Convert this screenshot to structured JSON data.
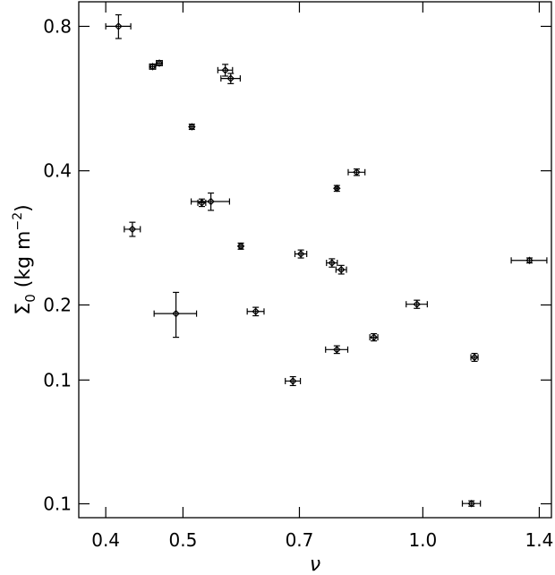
{
  "chart_data": {
    "type": "scatter",
    "title": "",
    "xlabel": "ν",
    "ylabel": "Σ₀ (kg m⁻²)",
    "ylabel_parts": {
      "symbol": "Σ",
      "subscript": "0",
      "units_open": " (kg m",
      "units_exp": "−2",
      "units_close": ")"
    },
    "x_scale": "log",
    "y_scale": "log",
    "xlim": [
      0.37,
      1.45
    ],
    "ylim": [
      0.0715,
      0.88
    ],
    "x_ticks": [
      0.4,
      0.5,
      0.7,
      1.0,
      1.4
    ],
    "x_tick_labels": [
      "0.4",
      "0.5",
      "0.7",
      "1.0",
      "1.4"
    ],
    "y_ticks": [
      0.0765,
      0.1397,
      0.2013,
      0.3867,
      0.7808
    ],
    "y_tick_labels": [
      "0.1",
      "0.1",
      "0.2",
      "0.4",
      "0.8"
    ],
    "marker": "diamond",
    "grid": false,
    "points": [
      {
        "x": 0.415,
        "y": 0.781,
        "xerr": 0.015,
        "yerr": 0.045
      },
      {
        "x": 0.458,
        "y": 0.642,
        "xerr": 0.004,
        "yerr": 0.008
      },
      {
        "x": 0.467,
        "y": 0.653,
        "xerr": 0.004,
        "yerr": 0.008
      },
      {
        "x": 0.565,
        "y": 0.631,
        "xerr": 0.012,
        "yerr": 0.018
      },
      {
        "x": 0.574,
        "y": 0.606,
        "xerr": 0.016,
        "yerr": 0.015
      },
      {
        "x": 0.513,
        "y": 0.479,
        "xerr": 0.003,
        "yerr": 0.006
      },
      {
        "x": 0.826,
        "y": 0.384,
        "xerr": 0.02,
        "yerr": 0.006
      },
      {
        "x": 0.78,
        "y": 0.355,
        "xerr": 0.003,
        "yerr": 0.005
      },
      {
        "x": 0.528,
        "y": 0.331,
        "xerr": 0.006,
        "yerr": 0.006
      },
      {
        "x": 0.542,
        "y": 0.333,
        "xerr": 0.03,
        "yerr": 0.014
      },
      {
        "x": 0.432,
        "y": 0.291,
        "xerr": 0.01,
        "yerr": 0.01
      },
      {
        "x": 0.591,
        "y": 0.268,
        "xerr": 0.003,
        "yerr": 0.004
      },
      {
        "x": 0.703,
        "y": 0.258,
        "xerr": 0.012,
        "yerr": 0.005
      },
      {
        "x": 0.769,
        "y": 0.247,
        "xerr": 0.012,
        "yerr": 0.005
      },
      {
        "x": 0.79,
        "y": 0.239,
        "xerr": 0.012,
        "yerr": 0.005
      },
      {
        "x": 1.361,
        "y": 0.25,
        "xerr": 0.07,
        "yerr": 0.003
      },
      {
        "x": 0.983,
        "y": 0.202,
        "xerr": 0.03,
        "yerr": 0.004
      },
      {
        "x": 0.617,
        "y": 0.195,
        "xerr": 0.015,
        "yerr": 0.004
      },
      {
        "x": 0.49,
        "y": 0.193,
        "xerr": 0.03,
        "yerr": 0.021
      },
      {
        "x": 0.868,
        "y": 0.172,
        "xerr": 0.01,
        "yerr": 0.003
      },
      {
        "x": 0.78,
        "y": 0.162,
        "xerr": 0.025,
        "yerr": 0.003
      },
      {
        "x": 1.161,
        "y": 0.156,
        "xerr": 0.012,
        "yerr": 0.003
      },
      {
        "x": 0.687,
        "y": 0.139,
        "xerr": 0.015,
        "yerr": 0.003
      },
      {
        "x": 1.151,
        "y": 0.0766,
        "xerr": 0.03,
        "yerr": 0.001
      }
    ]
  }
}
